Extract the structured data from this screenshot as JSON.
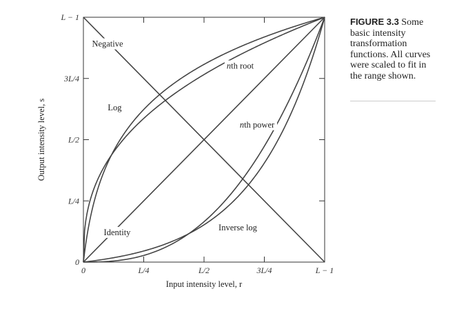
{
  "figure": {
    "label": "FIGURE 3.3",
    "caption_text": "Some basic intensity transformation functions. All curves were scaled to fit in the range shown."
  },
  "chart_data": {
    "type": "line",
    "xlabel": "Input intensity level, r",
    "ylabel": "Output intensity level, s",
    "xlim": [
      0,
      1
    ],
    "ylim": [
      0,
      1
    ],
    "x_ticks": [
      {
        "value": 0,
        "label": "0"
      },
      {
        "value": 0.25,
        "label": "L/4"
      },
      {
        "value": 0.5,
        "label": "L/2"
      },
      {
        "value": 0.75,
        "label": "3L/4"
      },
      {
        "value": 1,
        "label": "L − 1"
      }
    ],
    "y_ticks": [
      {
        "value": 0,
        "label": "0"
      },
      {
        "value": 0.25,
        "label": "L/4"
      },
      {
        "value": 0.5,
        "label": "L/2"
      },
      {
        "value": 0.75,
        "label": "3L/4"
      },
      {
        "value": 1,
        "label": "L − 1"
      }
    ],
    "series": [
      {
        "name": "Negative",
        "x": [
          0,
          1
        ],
        "y": [
          1,
          0
        ],
        "label_at": [
          0.1,
          0.88
        ]
      },
      {
        "name": "Identity",
        "x": [
          0,
          1
        ],
        "y": [
          0,
          1
        ],
        "label_at": [
          0.14,
          0.11
        ]
      },
      {
        "name": "Log",
        "function": "log(1+r*c)/log(1+c)",
        "c": 30,
        "label_at": [
          0.13,
          0.62
        ]
      },
      {
        "name": "nth root",
        "function": "r^(1/n)",
        "n": 2.6,
        "label_at": [
          0.65,
          0.79
        ]
      },
      {
        "name": "nth power",
        "function": "r^n",
        "n": 2.6,
        "label_at": [
          0.72,
          0.55
        ]
      },
      {
        "name": "Inverse log",
        "function": "(exp(r*log(1+c))-1)/c",
        "c": 30,
        "label_at": [
          0.64,
          0.13
        ]
      }
    ]
  }
}
